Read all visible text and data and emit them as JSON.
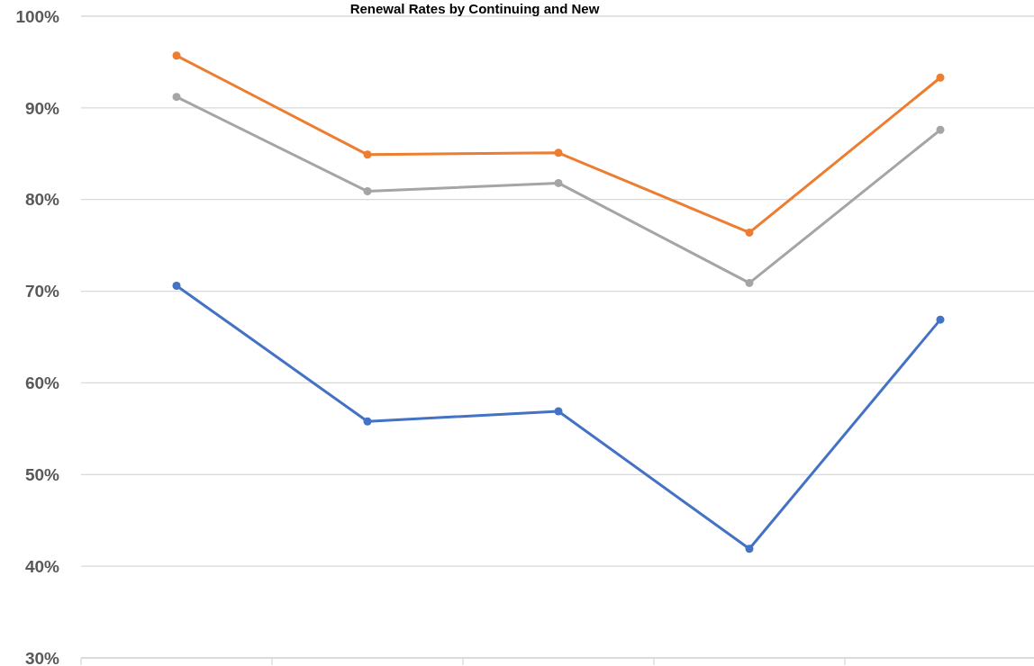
{
  "chart_data": {
    "type": "line",
    "title": "Renewal Rates by Continuing and New",
    "categories": [
      null,
      null,
      null,
      null,
      null
    ],
    "series": [
      {
        "color": "#ed7d31",
        "values": [
          95.7,
          84.9,
          85.1,
          76.4,
          93.3
        ]
      },
      {
        "color": "#a5a5a5",
        "values": [
          91.2,
          80.9,
          81.8,
          70.9,
          87.6
        ]
      },
      {
        "color": "#4472c4",
        "values": [
          70.6,
          55.8,
          56.9,
          41.9,
          66.9
        ]
      }
    ],
    "ylim": [
      30,
      100
    ],
    "yticks": [
      {
        "value": 30,
        "label": "30%"
      },
      {
        "value": 40,
        "label": "40%"
      },
      {
        "value": 50,
        "label": "50%"
      },
      {
        "value": 60,
        "label": "60%"
      },
      {
        "value": 70,
        "label": "70%"
      },
      {
        "value": 80,
        "label": "80%"
      },
      {
        "value": 90,
        "label": "90%"
      },
      {
        "value": 100,
        "label": "100%"
      }
    ],
    "grid": "y",
    "marker": "circle",
    "line_style": "solid"
  }
}
